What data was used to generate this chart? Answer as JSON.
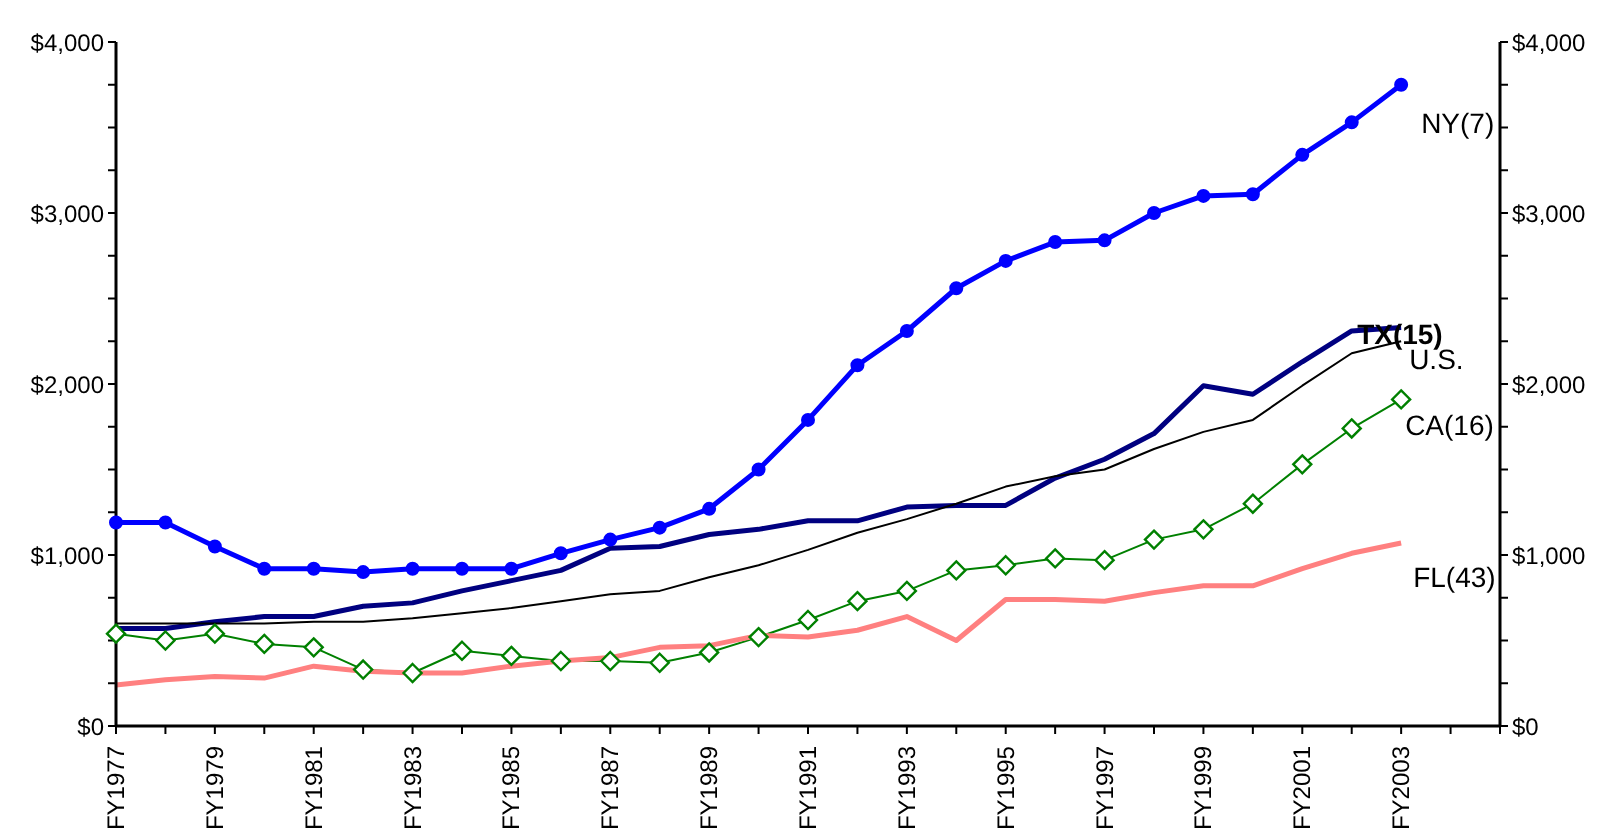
{
  "chart_data": {
    "type": "line",
    "categories": [
      "FY1977",
      null,
      "FY1979",
      null,
      "FY1981",
      null,
      "FY1983",
      null,
      "FY1985",
      null,
      "FY1987",
      null,
      "FY1989",
      null,
      "FY1991",
      null,
      "FY1993",
      null,
      "FY1995",
      null,
      "FY1997",
      null,
      "FY1999",
      null,
      "FY2001",
      null,
      "FY2003",
      null,
      null
    ],
    "series": [
      {
        "name": "NY(7)",
        "color": "#0000ff",
        "marker": "circle",
        "values": [
          1190,
          1190,
          1050,
          920,
          920,
          900,
          920,
          920,
          920,
          1010,
          1090,
          1160,
          1270,
          1500,
          1790,
          2110,
          2310,
          2560,
          2720,
          2830,
          2840,
          3000,
          3100,
          3110,
          3340,
          3530,
          3750,
          null,
          null
        ]
      },
      {
        "name": "TX(15)",
        "color": "#000080",
        "marker": "none",
        "values": [
          570,
          570,
          610,
          640,
          640,
          700,
          720,
          790,
          850,
          910,
          1040,
          1050,
          1120,
          1150,
          1200,
          1200,
          1280,
          1290,
          1290,
          1450,
          1560,
          1710,
          1990,
          1940,
          2130,
          2310,
          2330,
          null,
          null
        ]
      },
      {
        "name": "U.S.",
        "color": "#000000",
        "marker": "none",
        "values": [
          600,
          600,
          600,
          600,
          610,
          610,
          630,
          660,
          690,
          730,
          770,
          790,
          870,
          940,
          1030,
          1130,
          1210,
          1300,
          1400,
          1460,
          1500,
          1620,
          1720,
          1790,
          1990,
          2180,
          2250,
          null,
          null
        ]
      },
      {
        "name": "CA(16)",
        "color": "#008000",
        "marker": "diamond",
        "values": [
          540,
          500,
          540,
          480,
          460,
          330,
          310,
          440,
          410,
          380,
          380,
          370,
          430,
          520,
          620,
          730,
          790,
          910,
          940,
          980,
          970,
          1090,
          1150,
          1300,
          1530,
          1740,
          1910,
          null,
          null
        ]
      },
      {
        "name": "FL(43)",
        "color": "#ff8080",
        "marker": "none",
        "values": [
          240,
          270,
          290,
          280,
          350,
          320,
          310,
          310,
          350,
          380,
          400,
          460,
          470,
          530,
          520,
          560,
          640,
          500,
          740,
          740,
          730,
          780,
          820,
          820,
          920,
          1010,
          1070,
          null,
          null
        ]
      }
    ],
    "ylim": [
      0,
      4000
    ],
    "yticks": [
      {
        "value": 0,
        "label": "$0"
      },
      {
        "value": 250,
        "label": null
      },
      {
        "value": 500,
        "label": null
      },
      {
        "value": 750,
        "label": null
      },
      {
        "value": 1000,
        "label": "$1,000"
      },
      {
        "value": 1250,
        "label": null
      },
      {
        "value": 1500,
        "label": null
      },
      {
        "value": 1750,
        "label": null
      },
      {
        "value": 2000,
        "label": "$2,000"
      },
      {
        "value": 2250,
        "label": null
      },
      {
        "value": 2500,
        "label": null
      },
      {
        "value": 2750,
        "label": null
      },
      {
        "value": 3000,
        "label": "$3,000"
      },
      {
        "value": 3250,
        "label": null
      },
      {
        "value": 3500,
        "label": null
      },
      {
        "value": 3750,
        "label": null
      },
      {
        "value": 4000,
        "label": "$4,000"
      }
    ],
    "y2lim": [
      0,
      4000
    ],
    "y2ticks": [
      {
        "value": 0,
        "label": "$0"
      },
      {
        "value": 250,
        "label": null
      },
      {
        "value": 500,
        "label": null
      },
      {
        "value": 750,
        "label": null
      },
      {
        "value": 1000,
        "label": "$1,000"
      },
      {
        "value": 1250,
        "label": null
      },
      {
        "value": 1500,
        "label": null
      },
      {
        "value": 1750,
        "label": null
      },
      {
        "value": 2000,
        "label": "$2,000"
      },
      {
        "value": 2250,
        "label": null
      },
      {
        "value": 2500,
        "label": null
      },
      {
        "value": 2750,
        "label": null
      },
      {
        "value": 3000,
        "label": "$3,000"
      },
      {
        "value": 3250,
        "label": null
      },
      {
        "value": 3500,
        "label": null
      },
      {
        "value": 3750,
        "label": null
      },
      {
        "value": 4000,
        "label": "$4,000"
      }
    ],
    "grid": false,
    "legend": false
  }
}
